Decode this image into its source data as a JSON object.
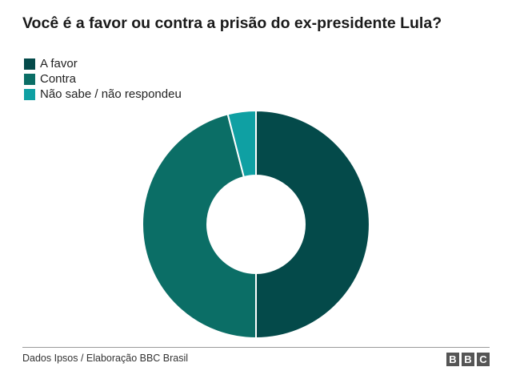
{
  "chart_data": {
    "type": "pie",
    "title": "Você é a favor ou contra a prisão do ex-presidente Lula?",
    "categories": [
      "A favor",
      "Contra",
      "Não sabe / não respondeu"
    ],
    "values": [
      50,
      46,
      4
    ],
    "unit": "%",
    "colors": [
      "#044a4a",
      "#0b6e66",
      "#0fa0a3"
    ],
    "donut": true,
    "legend_position": "top-left"
  },
  "source": "Dados Ipsos / Elaboração BBC Brasil",
  "logo": {
    "text": "BBC",
    "letters": [
      "B",
      "B",
      "C"
    ]
  }
}
